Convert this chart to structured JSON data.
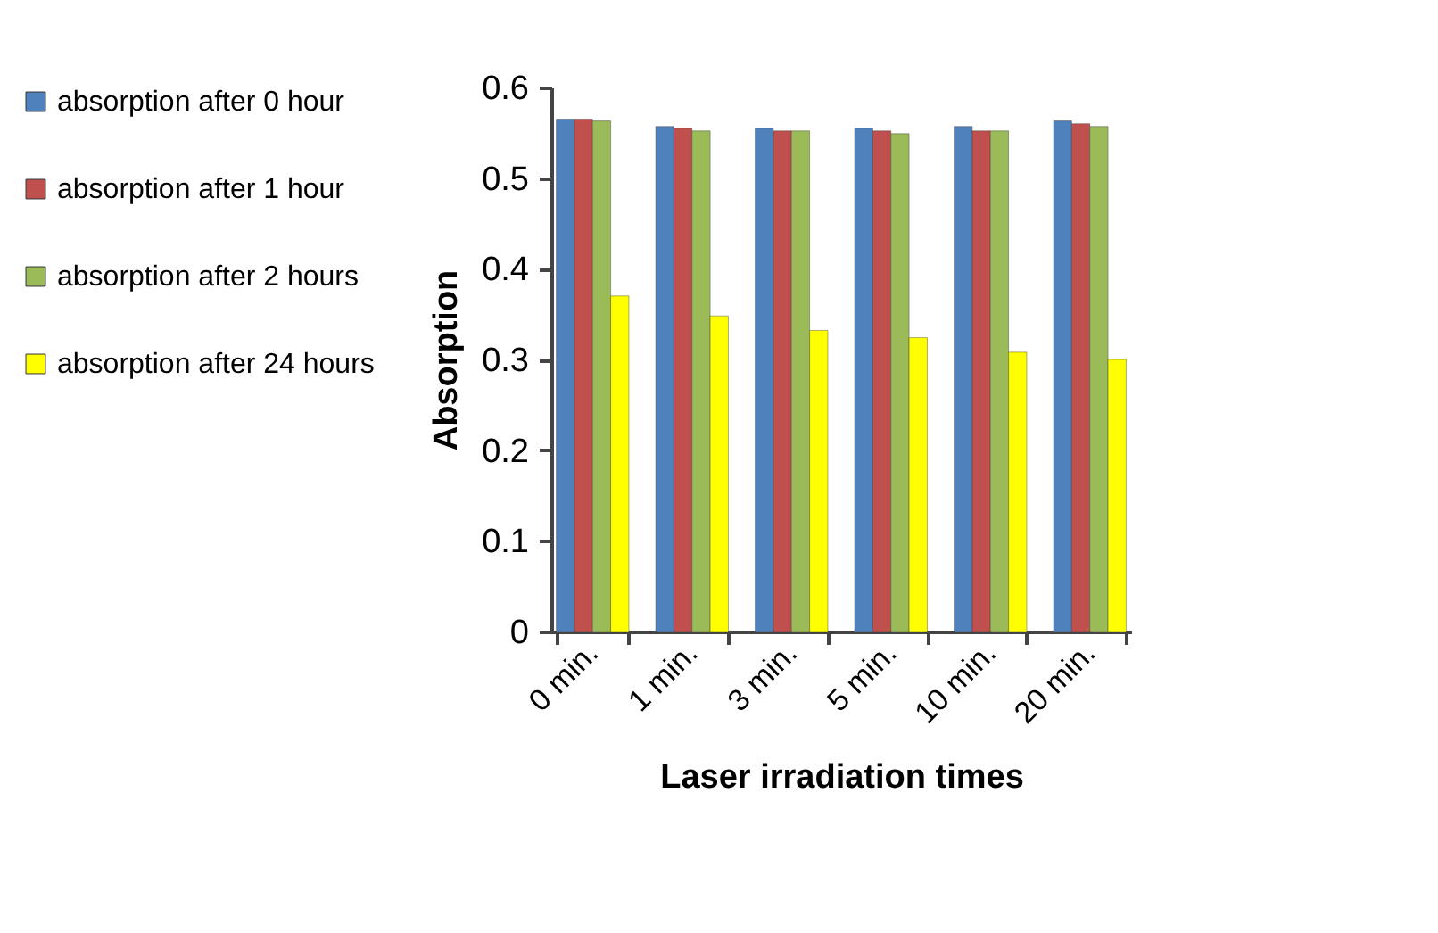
{
  "chart_data": {
    "type": "bar",
    "xlabel": "Laser irradiation  times",
    "ylabel": "Absorption",
    "categories": [
      "0  min.",
      "1 min.",
      "3 min.",
      "5 min.",
      "10 min.",
      "20 min."
    ],
    "series": [
      {
        "name": "absorption after 0 hour",
        "color": "#4f81bd",
        "values": [
          0.565,
          0.557,
          0.555,
          0.555,
          0.557,
          0.563
        ]
      },
      {
        "name": "absorption after 1 hour",
        "color": "#c0504d",
        "values": [
          0.565,
          0.555,
          0.552,
          0.552,
          0.552,
          0.56
        ]
      },
      {
        "name": "absorption after 2 hours",
        "color": "#9bbb59",
        "values": [
          0.563,
          0.552,
          0.552,
          0.549,
          0.552,
          0.557
        ]
      },
      {
        "name": "absorption after 24 hours",
        "color": "#ffff00",
        "values": [
          0.37,
          0.348,
          0.332,
          0.324,
          0.308,
          0.3
        ]
      }
    ],
    "ylim": [
      0,
      0.6
    ],
    "yticks": [
      0,
      0.1,
      0.2,
      0.3,
      0.4,
      0.5,
      0.6
    ],
    "grid": false,
    "legend": "left"
  }
}
